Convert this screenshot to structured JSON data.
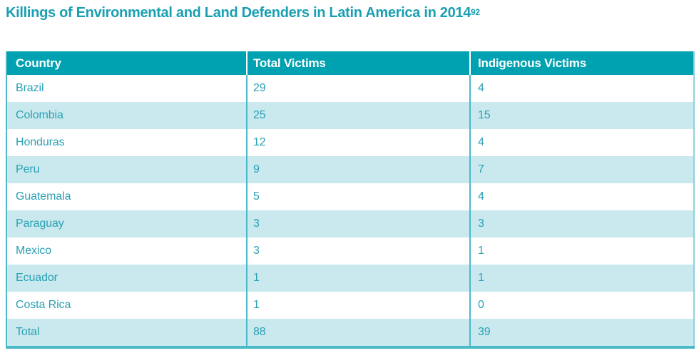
{
  "colors": {
    "header_bg": "#00a2b2",
    "row_alt_bg": "#c9e9ee",
    "cell_text": "#2aa0b3",
    "title_text": "#199fb2",
    "border": "#4cb9c9",
    "border_light": "#8fd2dc"
  },
  "chart_data": {
    "type": "table",
    "title": "Killings of Environmental and Land Defenders in Latin America in 2014",
    "footnote_ref": "92",
    "columns": [
      "Country",
      "Total Victims",
      "Indigenous Victims"
    ],
    "rows": [
      [
        "Brazil",
        29,
        4
      ],
      [
        "Colombia",
        25,
        15
      ],
      [
        "Honduras",
        12,
        4
      ],
      [
        "Peru",
        9,
        7
      ],
      [
        "Guatemala",
        5,
        4
      ],
      [
        "Paraguay",
        3,
        3
      ],
      [
        "Mexico",
        3,
        1
      ],
      [
        "Ecuador",
        1,
        1
      ],
      [
        "Costa Rica",
        1,
        0
      ],
      [
        "Total",
        88,
        39
      ]
    ]
  }
}
